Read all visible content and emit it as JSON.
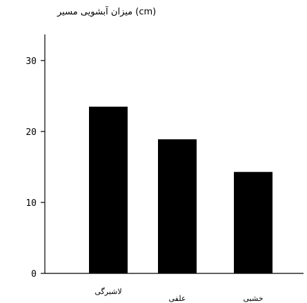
{
  "chart_data": {
    "type": "bar",
    "title": "",
    "xlabel": "",
    "ylabel": "میزان آبشویی مسیر (cm)",
    "categories": [
      "لاشبرگی",
      "علفی",
      "خشبی"
    ],
    "values": [
      23.5,
      18.9,
      14.3
    ],
    "ylim": [
      0,
      33
    ],
    "yticks": [
      0,
      10,
      20,
      30
    ],
    "grid": false,
    "legend": "none",
    "bar_color": "#000000"
  }
}
